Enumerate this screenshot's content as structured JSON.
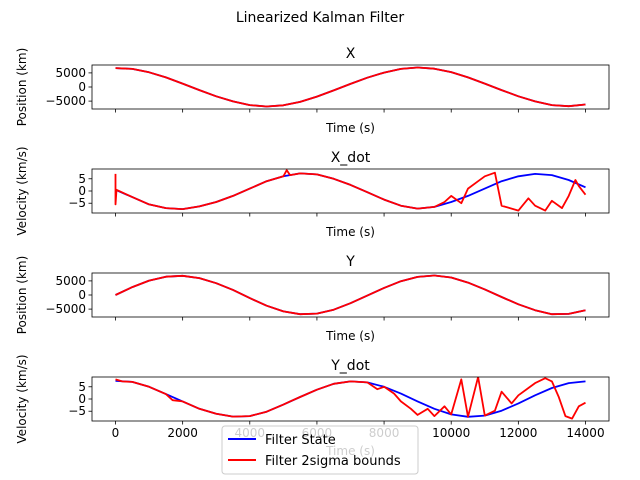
{
  "figure": {
    "suptitle": "Linearized Kalman Filter"
  },
  "legend": {
    "location": "lower center",
    "entries": [
      {
        "label": "Filter State",
        "color": "#0000ff"
      },
      {
        "label": "Filter 2sigma bounds",
        "color": "#ff0000"
      }
    ]
  },
  "chart_data": [
    {
      "type": "line",
      "title": "X",
      "xlabel": "Time (s)",
      "ylabel": "Position (km)",
      "xlim": [
        -700,
        14700
      ],
      "ylim": [
        -7800,
        7800
      ],
      "xticks": [
        0,
        2000,
        4000,
        6000,
        8000,
        10000,
        12000,
        14000
      ],
      "xticklabels_shown": false,
      "yticks": [
        -5000,
        0,
        5000
      ],
      "yticklabels": [
        "−5000",
        "0",
        "5000"
      ],
      "series": [
        {
          "color": "#0000ff",
          "x": [
            0,
            500,
            1000,
            1500,
            2000,
            2500,
            3000,
            3500,
            4000,
            4500,
            5000,
            5500,
            6000,
            6500,
            7000,
            7500,
            8000,
            8500,
            9000,
            9500,
            10000,
            10500,
            11000,
            11500,
            12000,
            12500,
            13000,
            13500,
            14000
          ],
          "y": [
            6700,
            6400,
            5200,
            3400,
            1200,
            -1100,
            -3300,
            -5100,
            -6400,
            -6900,
            -6500,
            -5300,
            -3400,
            -1200,
            1100,
            3300,
            5100,
            6400,
            6900,
            6500,
            5300,
            3400,
            1200,
            -1100,
            -3300,
            -5100,
            -6400,
            -6800,
            -6200
          ]
        },
        {
          "color": "#ff0000",
          "x": [
            0,
            500,
            1000,
            1500,
            2000,
            2500,
            3000,
            3500,
            4000,
            4500,
            5000,
            5500,
            6000,
            6500,
            7000,
            7500,
            8000,
            8500,
            9000,
            9500,
            10000,
            10500,
            11000,
            11500,
            12000,
            12500,
            13000,
            13500,
            14000
          ],
          "y": [
            6700,
            6400,
            5200,
            3400,
            1200,
            -1100,
            -3300,
            -5100,
            -6400,
            -6900,
            -6500,
            -5300,
            -3400,
            -1200,
            1100,
            3300,
            5100,
            6400,
            6900,
            6500,
            5300,
            3400,
            1200,
            -1100,
            -3300,
            -5100,
            -6400,
            -6800,
            -6200
          ]
        }
      ]
    },
    {
      "type": "line",
      "title": "X_dot",
      "xlabel": "Time (s)",
      "ylabel": "Velocity (km/s)",
      "xlim": [
        -700,
        14700
      ],
      "ylim": [
        -9,
        9
      ],
      "xticks": [
        0,
        2000,
        4000,
        6000,
        8000,
        10000,
        12000,
        14000
      ],
      "xticklabels_shown": false,
      "yticks": [
        -5,
        0,
        5
      ],
      "yticklabels": [
        "−5",
        "0",
        "5"
      ],
      "series": [
        {
          "color": "#0000ff",
          "x": [
            0,
            500,
            1000,
            1500,
            2000,
            2500,
            3000,
            3500,
            4000,
            4500,
            5000,
            5500,
            6000,
            6500,
            7000,
            7500,
            8000,
            8500,
            9000,
            9500,
            10000,
            10500,
            11000,
            11500,
            12000,
            12500,
            13000,
            13500,
            14000
          ],
          "y": [
            0.5,
            -2.5,
            -5.5,
            -7,
            -7.4,
            -6.3,
            -4.5,
            -2,
            1,
            4,
            6,
            7.2,
            6.8,
            5,
            2.5,
            -0.5,
            -3.5,
            -6,
            -7.2,
            -6.5,
            -4.5,
            -2,
            1,
            4,
            6,
            7,
            6.5,
            4.5,
            1.5
          ]
        },
        {
          "color": "#ff0000",
          "x": [
            0,
            0,
            30,
            500,
            1000,
            1500,
            2000,
            2500,
            3000,
            3500,
            4000,
            4500,
            5000,
            5100,
            5200,
            5500,
            6000,
            6500,
            7000,
            7500,
            8000,
            8500,
            9000,
            9500,
            9800,
            10000,
            10300,
            10500,
            10800,
            11000,
            11300,
            11500,
            12000,
            12300,
            12500,
            12800,
            13000,
            13300,
            13500,
            13700,
            13800,
            14000
          ],
          "y": [
            7,
            -5.5,
            0.5,
            -2.5,
            -5.5,
            -7,
            -7.4,
            -6.3,
            -4.5,
            -2,
            1,
            4,
            6,
            8.5,
            6.5,
            7.2,
            6.8,
            5,
            2.5,
            -0.5,
            -3.5,
            -6,
            -7.2,
            -6.5,
            -4.5,
            -2,
            -5,
            1,
            4,
            6,
            7.5,
            -6,
            -8,
            -3,
            -6,
            -8,
            -4,
            -7,
            -2,
            4.5,
            2,
            -1.5
          ]
        }
      ]
    },
    {
      "type": "line",
      "title": "Y",
      "xlabel": "Time (s)",
      "ylabel": "Position (km)",
      "xlim": [
        -700,
        14700
      ],
      "ylim": [
        -7800,
        7800
      ],
      "xticks": [
        0,
        2000,
        4000,
        6000,
        8000,
        10000,
        12000,
        14000
      ],
      "xticklabels_shown": false,
      "yticks": [
        -5000,
        0,
        5000
      ],
      "yticklabels": [
        "−5000",
        "0",
        "5000"
      ],
      "series": [
        {
          "color": "#0000ff",
          "x": [
            0,
            500,
            1000,
            1500,
            2000,
            2500,
            3000,
            3500,
            4000,
            4500,
            5000,
            5500,
            6000,
            6500,
            7000,
            7500,
            8000,
            8500,
            9000,
            9500,
            10000,
            10500,
            11000,
            11500,
            12000,
            12500,
            13000,
            13500,
            14000
          ],
          "y": [
            0,
            2800,
            5100,
            6500,
            6800,
            6000,
            4200,
            1800,
            -1100,
            -3800,
            -5800,
            -6800,
            -6600,
            -5200,
            -2900,
            -200,
            2500,
            4900,
            6400,
            6900,
            6200,
            4400,
            2000,
            -700,
            -3300,
            -5400,
            -6800,
            -6700,
            -5400
          ]
        },
        {
          "color": "#ff0000",
          "x": [
            0,
            500,
            1000,
            1500,
            2000,
            2500,
            3000,
            3500,
            4000,
            4500,
            5000,
            5500,
            6000,
            6500,
            7000,
            7500,
            8000,
            8500,
            9000,
            9500,
            10000,
            10500,
            11000,
            11500,
            12000,
            12500,
            13000,
            13500,
            14000
          ],
          "y": [
            0,
            2800,
            5100,
            6500,
            6800,
            6000,
            4200,
            1800,
            -1100,
            -3800,
            -5800,
            -6800,
            -6600,
            -5200,
            -2900,
            -200,
            2500,
            4900,
            6400,
            6900,
            6200,
            4400,
            2000,
            -700,
            -3300,
            -5400,
            -6800,
            -6700,
            -5400
          ]
        }
      ]
    },
    {
      "type": "line",
      "title": "Y_dot",
      "xlabel": "Time (s)",
      "ylabel": "Velocity (km/s)",
      "xlim": [
        -700,
        14700
      ],
      "ylim": [
        -9,
        9
      ],
      "xticks": [
        0,
        2000,
        4000,
        6000,
        8000,
        10000,
        12000,
        14000
      ],
      "xticklabels": [
        "0",
        "2000",
        "4000",
        "6000",
        "8000",
        "10000",
        "12000",
        "14000"
      ],
      "xticklabels_shown": true,
      "yticks": [
        -5,
        0,
        5
      ],
      "yticklabels": [
        "−5",
        "0",
        "5"
      ],
      "series": [
        {
          "color": "#0000ff",
          "x": [
            0,
            500,
            1000,
            1500,
            2000,
            2500,
            3000,
            3500,
            4000,
            4500,
            5000,
            5500,
            6000,
            6500,
            7000,
            7500,
            8000,
            8500,
            9000,
            9500,
            10000,
            10500,
            11000,
            11500,
            12000,
            12500,
            13000,
            13500,
            14000
          ],
          "y": [
            7.4,
            7,
            5,
            2,
            -1,
            -4,
            -6,
            -7.2,
            -7,
            -5.2,
            -2.3,
            0.8,
            3.8,
            6.2,
            7.2,
            6.8,
            5,
            2.2,
            -1,
            -4,
            -6.3,
            -7.3,
            -6.8,
            -4.8,
            -1.8,
            1.5,
            4.5,
            6.5,
            7.2
          ]
        },
        {
          "color": "#ff0000",
          "x": [
            0,
            200,
            500,
            1000,
            1500,
            1700,
            2000,
            2500,
            3000,
            3500,
            4000,
            4500,
            5000,
            5200,
            5500,
            6000,
            6500,
            7000,
            7500,
            7800,
            8000,
            8300,
            8500,
            8800,
            9000,
            9300,
            9500,
            9800,
            10000,
            10300,
            10500,
            10800,
            11000,
            11300,
            11500,
            11800,
            12000,
            12300,
            12500,
            12800,
            13000,
            13200,
            13400,
            13600,
            13800,
            14000
          ],
          "y": [
            8,
            7.2,
            7,
            5,
            2,
            -0.5,
            -1,
            -4,
            -6,
            -7.2,
            -7,
            -5.2,
            -2.3,
            -1,
            0.8,
            3.8,
            6.2,
            7.2,
            6.8,
            4,
            5,
            2.2,
            -1,
            -4,
            -6.5,
            -4,
            -7,
            -3,
            -6.3,
            8,
            -7.3,
            9,
            -6.8,
            -4.8,
            3,
            -1.8,
            1.5,
            4.5,
            6.5,
            8.5,
            7.2,
            1,
            -7,
            -8,
            -3,
            -1.5
          ]
        }
      ]
    }
  ]
}
